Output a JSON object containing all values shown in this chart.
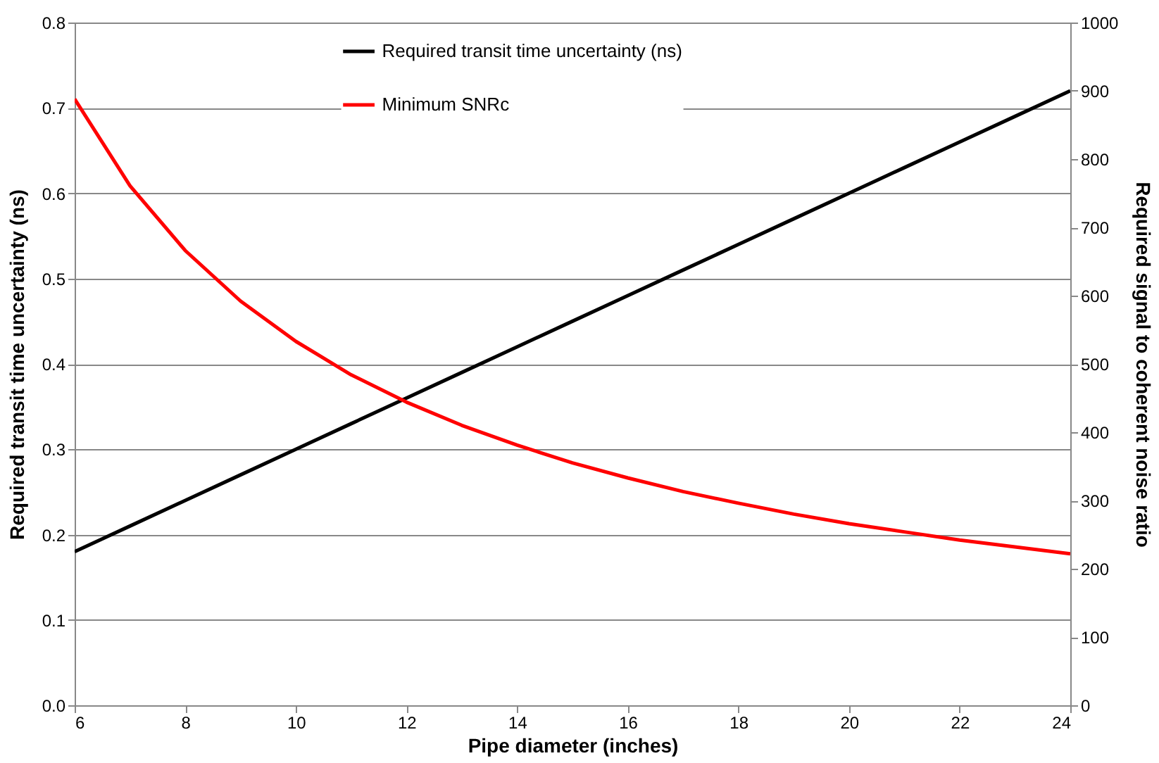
{
  "chart_data": {
    "type": "line",
    "xlabel": "Pipe diameter (inches)",
    "ylabel": "Required transit time uncertainty (ns)",
    "y2label": "Required signal to coherent noise ratio",
    "x": [
      6,
      7,
      8,
      9,
      10,
      11,
      12,
      13,
      14,
      15,
      16,
      17,
      18,
      19,
      20,
      21,
      22,
      23,
      24
    ],
    "series": [
      {
        "name": "Required transit time uncertainty (ns)",
        "color": "#000000",
        "values": [
          0.18,
          0.21,
          0.24,
          0.27,
          0.3,
          0.33,
          0.36,
          0.39,
          0.42,
          0.45,
          0.48,
          0.51,
          0.54,
          0.57,
          0.6,
          0.63,
          0.66,
          0.69,
          0.72
        ]
      },
      {
        "name": "Minimum SNRc",
        "color": "#ff0000",
        "axis": "y2",
        "values": [
          888,
          761,
          666,
          592,
          533,
          484,
          444,
          410,
          381,
          355,
          333,
          313,
          296,
          280,
          266,
          254,
          242,
          232,
          222
        ]
      }
    ],
    "xlim": [
      6,
      24
    ],
    "xticks": [
      6,
      8,
      10,
      12,
      14,
      16,
      18,
      20,
      22,
      24
    ],
    "ylim": [
      0,
      0.8
    ],
    "yticks": [
      {
        "value": 0,
        "label": "0.0"
      },
      0.1,
      0.2,
      0.3,
      0.4,
      0.5,
      0.6,
      0.7,
      0.8
    ],
    "y2lim": [
      0,
      1000
    ],
    "y2ticks": [
      0,
      100,
      200,
      300,
      400,
      500,
      600,
      700,
      800,
      900,
      1000
    ],
    "grid": "y",
    "legend": "top",
    "marker": "none",
    "line_style": "solid"
  }
}
